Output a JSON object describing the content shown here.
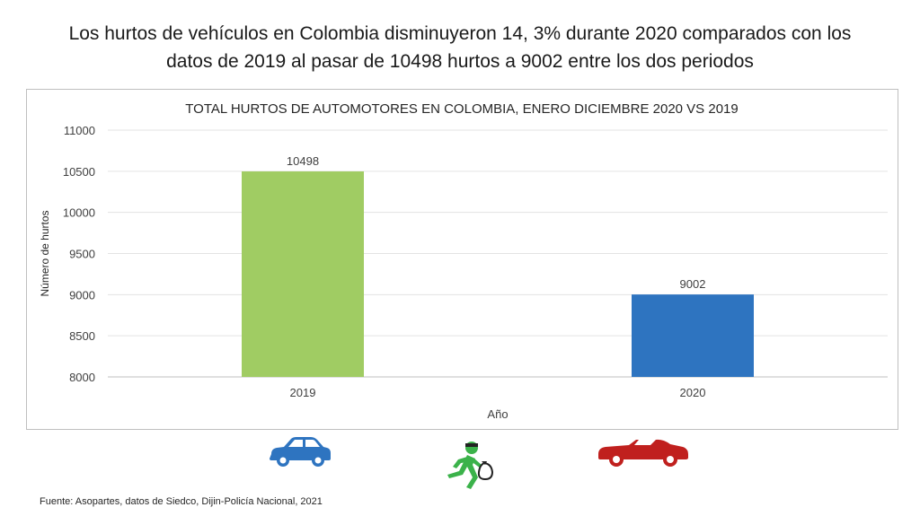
{
  "headline": {
    "line1": "Los hurtos de vehículos en Colombia disminuyeron 14, 3% durante 2020 comparados con los",
    "line2": "datos de 2019 al pasar de 10498 hurtos a 9002 entre los dos periodos"
  },
  "chart_data": {
    "type": "bar",
    "title": "TOTAL HURTOS DE AUTOMOTORES EN COLOMBIA, ENERO DICIEMBRE 2020 VS 2019",
    "xlabel": "Año",
    "ylabel": "Número de hurtos",
    "categories": [
      "2019",
      "2020"
    ],
    "values": [
      10498,
      9002
    ],
    "bar_colors": [
      "#a0cc63",
      "#2e74c0"
    ],
    "ylim": [
      8000,
      11000
    ],
    "yticks": [
      8000,
      8500,
      9000,
      9500,
      10000,
      10500,
      11000
    ],
    "grid": true
  },
  "icons": {
    "left": "blue-car-icon",
    "center": "running-thief-icon",
    "right": "red-convertible-icon",
    "colors": {
      "blue_car": "#2e74c0",
      "thief": "#3bb24a",
      "red_car": "#c0201e"
    }
  },
  "source": "Fuente: Asopartes, datos de Siedco, Dijin-Policía Nacional, 2021"
}
